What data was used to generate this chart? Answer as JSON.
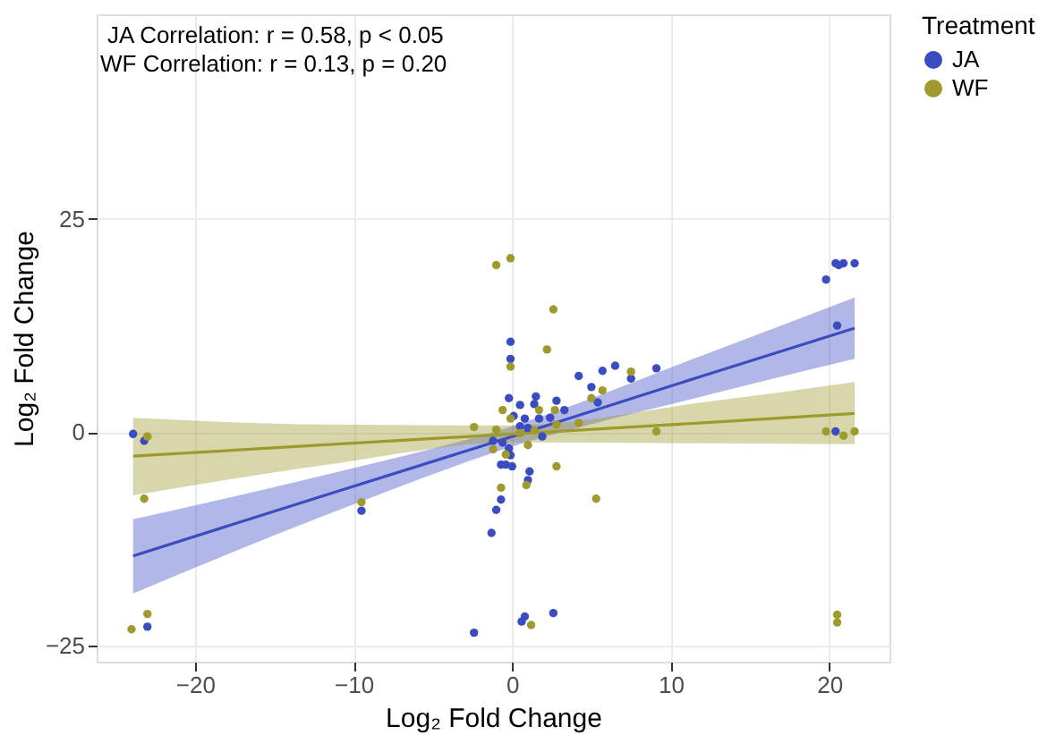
{
  "chart_data": {
    "type": "scatter",
    "xlabel": "Log₂ Fold Change",
    "ylabel": "Log₂ Fold Change",
    "legend_title": "Treatment",
    "legend": "right",
    "grid": true,
    "marker": "circle",
    "annotations": [
      "JA Correlation: r = 0.58, p < 0.05",
      "WF Correlation: r = 0.13, p = 0.20"
    ],
    "xlim": [
      -26.2,
      23.8
    ],
    "ylim": [
      -26.9,
      49
    ],
    "xticks": [
      -20,
      -10,
      0,
      10,
      20
    ],
    "yticks": [
      -25,
      0,
      25
    ],
    "series": [
      {
        "type": "line",
        "marker": "none",
        "color": "#3b4cc0",
        "x": [
          -23.9,
          -12,
          0,
          12,
          21.6
        ],
        "values": [
          -14.5,
          -7.5,
          -0.5,
          6.6,
          12.2
        ],
        "lower": [
          -18.9,
          -9.9,
          -1.7,
          4.2,
          8.6
        ],
        "upper": [
          -10.2,
          -5.1,
          0.7,
          9.0,
          15.8
        ]
      },
      {
        "type": "line",
        "marker": "none",
        "color": "#9e9a2e",
        "x": [
          -23.9,
          -12,
          0,
          12,
          21.6
        ],
        "values": [
          -2.8,
          -1.5,
          -0.2,
          1.1,
          2.2
        ],
        "lower": [
          -7.4,
          -3.9,
          -1.2,
          -1.3,
          -1.4
        ],
        "upper": [
          1.7,
          0.9,
          0.8,
          3.5,
          5.9
        ]
      },
      {
        "name": "JA",
        "color": "#3b4cc0",
        "x": [
          -23.9,
          -23.0,
          -9.5,
          -23.2,
          -0.1,
          -0.1,
          -0.2,
          4.2,
          5.0,
          5.7,
          6.5,
          9.1,
          7.5,
          5.4,
          2.8,
          3.3,
          1.5,
          0.5,
          1.4,
          1.1,
          1.0,
          0.9,
          -0.7,
          -0.4,
          0.0,
          -0.1,
          -0.7,
          -1.0,
          -1.3,
          0.8,
          0.6,
          2.6,
          -2.4,
          0.1,
          0.8,
          1.7,
          2.4,
          1.9,
          -0.6,
          -1.2,
          -0.2,
          1.0,
          0.5,
          19.8,
          20.4,
          20.6,
          20.9,
          21.6,
          20.5,
          20.4
        ],
        "values": [
          -0.2,
          -22.8,
          -9.2,
          -1.0,
          10.6,
          8.6,
          4.0,
          6.6,
          5.3,
          7.2,
          7.8,
          7.5,
          6.3,
          3.5,
          3.7,
          2.6,
          4.2,
          3.2,
          3.3,
          -4.6,
          -5.6,
          null,
          -3.8,
          -3.8,
          -4.0,
          -2.7,
          -7.9,
          -9.1,
          -11.8,
          -21.6,
          -22.2,
          -21.2,
          -23.5,
          1.9,
          1.6,
          1.6,
          1.7,
          -0.5,
          -1.2,
          -1.0,
          -1.9,
          0.5,
          0.7,
          17.9,
          19.8,
          19.6,
          19.8,
          19.8,
          12.5,
          0.1
        ]
      },
      {
        "name": "WF",
        "color": "#9e9a2e",
        "x": [
          -23.2,
          -23.0,
          -24.0,
          -9.5,
          -23.0,
          -0.1,
          -1.0,
          2.6,
          2.2,
          -0.1,
          -2.4,
          7.5,
          5.7,
          5.0,
          4.2,
          9.1,
          2.8,
          5.3,
          -0.7,
          0.9,
          1.2,
          1.0,
          -0.4,
          -0.6,
          2.7,
          -1.0,
          2.8,
          -0.1,
          1.4,
          1.7,
          0.5,
          -1.2,
          19.8,
          20.9,
          21.6,
          20.5,
          20.5
        ],
        "values": [
          -7.8,
          -21.3,
          -23.1,
          -8.2,
          -0.5,
          20.4,
          19.6,
          14.4,
          9.7,
          7.7,
          0.6,
          7.1,
          4.9,
          4.0,
          1.1,
          0.1,
          -4.0,
          -7.8,
          -6.5,
          -6.2,
          -22.6,
          -1.5,
          -2.6,
          2.6,
          2.6,
          0.3,
          0.9,
          1.6,
          0.2,
          2.6,
          -0.1,
          -2.0,
          0.1,
          -0.4,
          0.1,
          -21.4,
          -22.3
        ]
      }
    ]
  }
}
